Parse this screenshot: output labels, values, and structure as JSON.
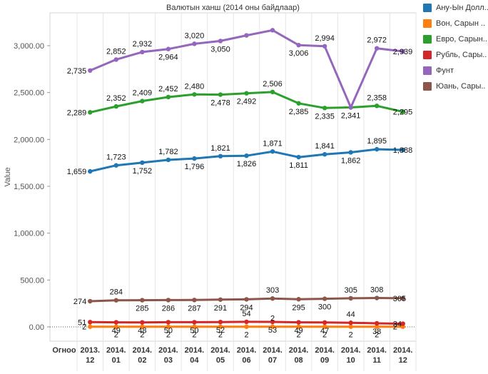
{
  "chart_data": {
    "type": "line",
    "title": "Валютын ханш (2014 оны байдлаар)",
    "ylabel": "Value",
    "xlabel": "",
    "x_header": "Огноо",
    "categories": [
      [
        "2013.",
        "12"
      ],
      [
        "2014.",
        "01"
      ],
      [
        "2014.",
        "02"
      ],
      [
        "2014.",
        "03"
      ],
      [
        "2014.",
        "04"
      ],
      [
        "2014.",
        "05"
      ],
      [
        "2014.",
        "06"
      ],
      [
        "2014.",
        "07"
      ],
      [
        "2014.",
        "08"
      ],
      [
        "2014.",
        "09"
      ],
      [
        "2014.",
        "10"
      ],
      [
        "2014.",
        "11"
      ],
      [
        "2014.",
        "12"
      ]
    ],
    "yticks": [
      0,
      500,
      1000,
      1500,
      2000,
      2500,
      3000
    ],
    "ytick_labels": [
      "0.00",
      "500.00",
      "1,000.00",
      "1,500.00",
      "2,000.00",
      "2,500.00",
      "3,000.00"
    ],
    "ylim": [
      -40,
      3300
    ],
    "grid": "vertical",
    "legend_position": "right",
    "series": [
      {
        "name": "Ану-Ын Долл..",
        "color": "#1f77b4",
        "values": [
          1659,
          1723,
          1752,
          1782,
          1796,
          1821,
          1826,
          1871,
          1811,
          1841,
          1862,
          1895,
          1888
        ],
        "labels": [
          "1,659",
          "1,723",
          "1,752",
          "1,782",
          "1,796",
          "1,821",
          "1,826",
          "1,871",
          "1,811",
          "1,841",
          "1,862",
          "1,895",
          "1,888"
        ],
        "label_pos": [
          "L",
          "A",
          "B",
          "A",
          "B",
          "A",
          "B",
          "A",
          "B",
          "A",
          "B",
          "A",
          "R"
        ]
      },
      {
        "name": "Вон, Сарын ..",
        "color": "#ff7f0e",
        "values": [
          2,
          2,
          2,
          2,
          2,
          2,
          2,
          2,
          2,
          2,
          2,
          2,
          2
        ],
        "labels": [
          "2",
          "2",
          "2",
          "2",
          "2",
          "2",
          "2",
          "2",
          "2",
          "2",
          "2",
          "2",
          "2"
        ],
        "label_pos": [
          "L",
          "B",
          "B",
          "B",
          "B",
          "B",
          "B",
          "A",
          "B",
          "B",
          "B",
          "B",
          "R"
        ]
      },
      {
        "name": "Евро, Сарын..",
        "color": "#2ca02c",
        "values": [
          2289,
          2352,
          2409,
          2452,
          2480,
          2478,
          2492,
          2506,
          2385,
          2335,
          2341,
          2358,
          2295
        ],
        "labels": [
          "2,289",
          "2,352",
          "2,409",
          "2,452",
          "2,480",
          "2,478",
          "2,492",
          "2,506",
          "2,385",
          "2,335",
          "2,341",
          "2,358",
          "2,295"
        ],
        "label_pos": [
          "L",
          "A",
          "A",
          "A",
          "A",
          "B",
          "B",
          "A",
          "B",
          "B",
          "B",
          "A",
          "R"
        ]
      },
      {
        "name": "Рубль, Сары..",
        "color": "#d62728",
        "values": [
          51,
          49,
          48,
          50,
          50,
          52,
          54,
          53,
          49,
          47,
          44,
          38,
          34
        ],
        "labels": [
          "51",
          "49",
          "48",
          "50",
          "50",
          "52",
          "54",
          "53",
          "49",
          "47",
          "44",
          "38",
          "34"
        ],
        "label_pos": [
          "L",
          "B",
          "B",
          "B",
          "B",
          "B",
          "A",
          "B",
          "B",
          "B",
          "A",
          "B",
          "R"
        ]
      },
      {
        "name": "Фунт",
        "color": "#9467bd",
        "values": [
          2735,
          2852,
          2932,
          2964,
          3020,
          3050,
          3110,
          3165,
          3006,
          2994,
          2341,
          2972,
          2939
        ],
        "labels": [
          "2,735",
          "2,852",
          "2,932",
          "2,964",
          "3,020",
          "3,050",
          "",
          "",
          "3,006",
          "2,994",
          "",
          "2,972",
          "2,939"
        ],
        "label_pos": [
          "L",
          "A",
          "A",
          "B",
          "A",
          "B",
          "N",
          "N",
          "B",
          "A",
          "N",
          "A",
          "R"
        ]
      },
      {
        "name": "Юань, Сары..",
        "color": "#8c564b",
        "values": [
          274,
          284,
          285,
          286,
          287,
          291,
          294,
          303,
          295,
          300,
          305,
          308,
          305
        ],
        "labels": [
          "274",
          "284",
          "285",
          "286",
          "287",
          "291",
          "294",
          "303",
          "295",
          "300",
          "305",
          "308",
          "305"
        ],
        "label_pos": [
          "L",
          "A",
          "B",
          "B",
          "B",
          "B",
          "B",
          "A",
          "B",
          "B",
          "A",
          "A",
          "R"
        ]
      }
    ]
  }
}
